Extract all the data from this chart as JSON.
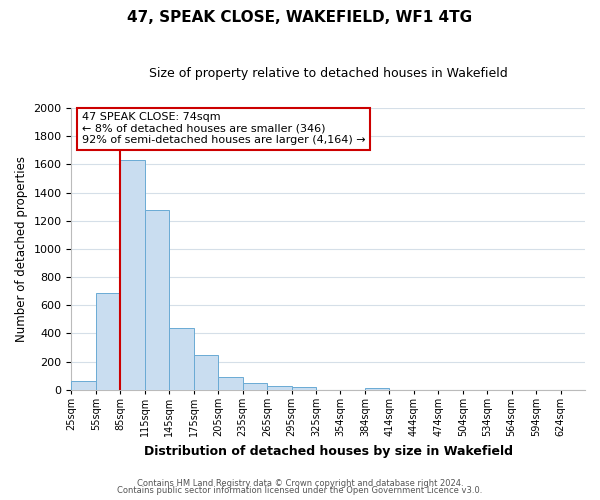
{
  "title": "47, SPEAK CLOSE, WAKEFIELD, WF1 4TG",
  "subtitle": "Size of property relative to detached houses in Wakefield",
  "xlabel": "Distribution of detached houses by size in Wakefield",
  "ylabel": "Number of detached properties",
  "bar_values": [
    65,
    690,
    1630,
    1280,
    440,
    250,
    90,
    50,
    30,
    20,
    0,
    0,
    15,
    0,
    0,
    0,
    0,
    0,
    0,
    0,
    0
  ],
  "bin_labels": [
    "25sqm",
    "55sqm",
    "85sqm",
    "115sqm",
    "145sqm",
    "175sqm",
    "205sqm",
    "235sqm",
    "265sqm",
    "295sqm",
    "325sqm",
    "354sqm",
    "384sqm",
    "414sqm",
    "444sqm",
    "474sqm",
    "504sqm",
    "534sqm",
    "564sqm",
    "594sqm",
    "624sqm"
  ],
  "bar_color": "#c9ddf0",
  "bar_edge_color": "#6aaad4",
  "vline_color": "#cc0000",
  "vline_x_bin": 2,
  "ylim": [
    0,
    2000
  ],
  "yticks": [
    0,
    200,
    400,
    600,
    800,
    1000,
    1200,
    1400,
    1600,
    1800,
    2000
  ],
  "annotation_title": "47 SPEAK CLOSE: 74sqm",
  "annotation_line1": "← 8% of detached houses are smaller (346)",
  "annotation_line2": "92% of semi-detached houses are larger (4,164) →",
  "annotation_box_color": "#ffffff",
  "annotation_box_edge_color": "#cc0000",
  "footer_line1": "Contains HM Land Registry data © Crown copyright and database right 2024.",
  "footer_line2": "Contains public sector information licensed under the Open Government Licence v3.0.",
  "bg_color": "#ffffff",
  "grid_color": "#d5dfe8"
}
